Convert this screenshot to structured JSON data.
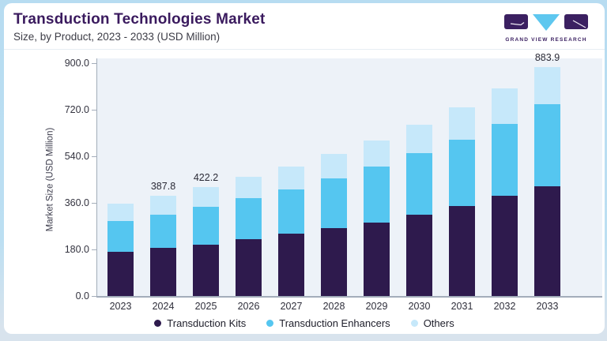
{
  "header": {
    "title": "Transduction Technologies Market",
    "subtitle": "Size, by Product, 2023 - 2033 (USD Million)"
  },
  "logo": {
    "name": "grand-view-research-logo",
    "text": "GRAND VIEW RESEARCH",
    "purple": "#3b2061",
    "blue": "#5ec7ef"
  },
  "chart_data": {
    "type": "bar",
    "stacked": true,
    "title": "Transduction Technologies Market",
    "subtitle": "Size, by Product, 2023 - 2033 (USD Million)",
    "xlabel": "",
    "ylabel": "Market Size (USD Million)",
    "ylim": [
      0,
      900
    ],
    "yticks": [
      0,
      180,
      360,
      540,
      720,
      900
    ],
    "ytick_labels": [
      "0.0",
      "180.0",
      "360.0",
      "540.0",
      "720.0",
      "900.0"
    ],
    "grid": false,
    "legend_position": "bottom",
    "categories": [
      "2023",
      "2024",
      "2025",
      "2026",
      "2027",
      "2028",
      "2029",
      "2030",
      "2031",
      "2032",
      "2033"
    ],
    "series": [
      {
        "name": "Transduction Kits",
        "color": "#2e1a4d",
        "values": [
          170,
          186,
          199,
          220,
          240,
          261,
          285,
          314,
          348,
          386,
          424
        ]
      },
      {
        "name": "Transduction Enhancers",
        "color": "#55c6f0",
        "values": [
          119,
          129,
          146,
          157,
          172,
          193,
          214,
          237,
          257,
          278,
          317
        ]
      },
      {
        "name": "Others",
        "color": "#c6e8fa",
        "values": [
          68,
          73,
          77,
          83,
          89,
          95,
          102,
          110,
          123,
          138,
          142.9
        ]
      }
    ],
    "totals_estimated": [
      357,
      387.8,
      422.2,
      460,
      501,
      549,
      601,
      661,
      728,
      802,
      883.9
    ],
    "annotations": [
      {
        "category": "2024",
        "text": "387.8"
      },
      {
        "category": "2025",
        "text": "422.2"
      },
      {
        "category": "2033",
        "text": "883.9"
      }
    ]
  }
}
